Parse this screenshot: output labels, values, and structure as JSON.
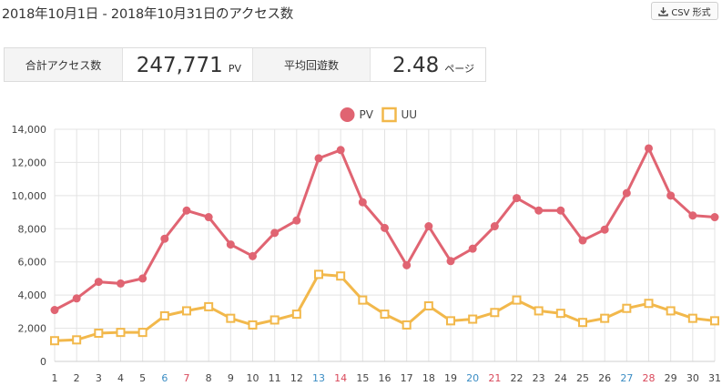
{
  "header": {
    "title": "2018年10月1日 - 2018年10月31日のアクセス数",
    "csv_button_label": "CSV 形式"
  },
  "stats": {
    "total_label": "合計アクセス数",
    "total_value": "247,771",
    "total_unit": "PV",
    "avg_label": "平均回遊数",
    "avg_value": "2.48",
    "avg_unit": "ページ"
  },
  "colors": {
    "pv": "#e06472",
    "uu": "#f2b84b",
    "saturday": "#3b8dc4",
    "sunday": "#d9485a",
    "weekday": "#444444",
    "grid": "#e3e3e3"
  },
  "icons": {
    "csv": "download-icon"
  },
  "chart_data": {
    "type": "line",
    "x": [
      "1",
      "2",
      "3",
      "4",
      "5",
      "6",
      "7",
      "8",
      "9",
      "10",
      "11",
      "12",
      "13",
      "14",
      "15",
      "16",
      "17",
      "18",
      "19",
      "20",
      "21",
      "22",
      "23",
      "24",
      "25",
      "26",
      "27",
      "28",
      "29",
      "30",
      "31"
    ],
    "x_colors": [
      "weekday",
      "weekday",
      "weekday",
      "weekday",
      "weekday",
      "saturday",
      "sunday",
      "weekday",
      "weekday",
      "weekday",
      "weekday",
      "weekday",
      "saturday",
      "sunday",
      "weekday",
      "weekday",
      "weekday",
      "weekday",
      "weekday",
      "saturday",
      "sunday",
      "weekday",
      "weekday",
      "weekday",
      "weekday",
      "weekday",
      "saturday",
      "sunday",
      "weekday",
      "weekday",
      "weekday"
    ],
    "series": [
      {
        "name": "PV",
        "marker": "circle",
        "color_key": "pv",
        "values": [
          3100,
          3800,
          4800,
          4700,
          5000,
          7400,
          9100,
          8700,
          7050,
          6350,
          7750,
          8500,
          12250,
          12750,
          9600,
          8050,
          5800,
          8150,
          6050,
          6800,
          8150,
          9850,
          9100,
          9100,
          7300,
          7950,
          10150,
          12850,
          10000,
          8800,
          8700
        ]
      },
      {
        "name": "UU",
        "marker": "square",
        "color_key": "uu",
        "values": [
          1250,
          1300,
          1700,
          1750,
          1750,
          2750,
          3050,
          3300,
          2600,
          2200,
          2500,
          2850,
          5250,
          5150,
          3700,
          2850,
          2200,
          3350,
          2450,
          2550,
          2950,
          3700,
          3050,
          2900,
          2350,
          2600,
          3200,
          3500,
          3050,
          2600,
          2450
        ]
      }
    ],
    "y_ticks": [
      "0",
      "2,000",
      "4,000",
      "6,000",
      "8,000",
      "10,000",
      "12,000",
      "14,000"
    ],
    "ylim": [
      0,
      14000
    ],
    "xlabel": "",
    "ylabel": "",
    "title": "",
    "grid": true,
    "legend_position": "top-center"
  }
}
